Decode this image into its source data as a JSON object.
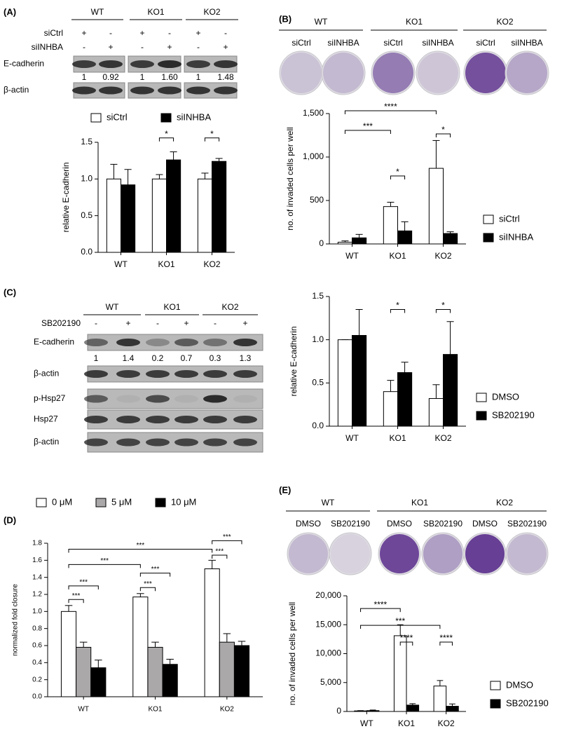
{
  "panels": [
    "(A)",
    "(B)",
    "(C)",
    "(D)",
    "(E)"
  ],
  "blot_a": {
    "groups": [
      "WT",
      "KO1",
      "KO2"
    ],
    "conditions": [
      {
        "name": "siCtrl",
        "signs": [
          "+",
          "-",
          "+",
          "-",
          "+",
          "-"
        ]
      },
      {
        "name": "siINHBA",
        "signs": [
          "-",
          "+",
          "-",
          "+",
          "-",
          "+"
        ]
      }
    ],
    "rows": [
      "E-cadherin",
      "β-actin"
    ],
    "ratios": [
      "1",
      "0.92",
      "1",
      "1.60",
      "1",
      "1.48"
    ]
  },
  "wells_b": {
    "groups": [
      "WT",
      "KO1",
      "KO2"
    ],
    "conditions": [
      "siCtrl",
      "siINHBA",
      "siCtrl",
      "siINHBA",
      "siCtrl",
      "siINHBA"
    ]
  },
  "blot_c": {
    "groups": [
      "WT",
      "KO1",
      "KO2"
    ],
    "conditions": [
      {
        "name": "SB202190",
        "signs": [
          "-",
          "+",
          "-",
          "+",
          "-",
          "+"
        ]
      }
    ],
    "rows": [
      "E-cadherin",
      "β-actin",
      "p-Hsp27",
      "Hsp27",
      "β-actin"
    ],
    "ratios": [
      "1",
      "1.4",
      "0.2",
      "0.7",
      "0.3",
      "1.3"
    ]
  },
  "wells_e": {
    "groups": [
      "WT",
      "KO1",
      "KO2"
    ],
    "conditions": [
      "DMSO",
      "SB202190",
      "DMSO",
      "SB202190",
      "DMSO",
      "SB202190"
    ]
  },
  "chart_data": [
    {
      "type": "bar",
      "ylabel": "relative E-cadherin",
      "categories": [
        "WT",
        "KO1",
        "KO2"
      ],
      "series": [
        {
          "name": "siCtrl",
          "color": "#ffffff",
          "values": [
            1.0,
            1.0,
            1.0
          ],
          "errors": [
            0.2,
            0.06,
            0.08
          ]
        },
        {
          "name": "siINHBA",
          "color": "#000000",
          "values": [
            0.92,
            1.26,
            1.24
          ],
          "errors": [
            0.21,
            0.11,
            0.04
          ]
        }
      ],
      "ylim": [
        0,
        1.5
      ],
      "yticks": [
        {
          "value": 0,
          "label": "0.0"
        },
        0.5,
        {
          "value": 1,
          "label": "1.0"
        },
        1.5
      ],
      "legend": "top",
      "brackets": [
        {
          "label": "*",
          "from": [
            0,
            1
          ],
          "to": [
            1,
            1
          ],
          "y": 1.56
        },
        {
          "label": "*",
          "from": [
            0,
            2
          ],
          "to": [
            1,
            2
          ],
          "y": 1.56
        }
      ]
    },
    {
      "type": "bar",
      "ylabel": "no. of invaded cells per well",
      "categories": [
        "WT",
        "KO1",
        "KO2"
      ],
      "series": [
        {
          "name": "siCtrl",
          "color": "#ffffff",
          "values": [
            20,
            430,
            870
          ],
          "errors": [
            15,
            50,
            320
          ]
        },
        {
          "name": "siINHBA",
          "color": "#000000",
          "values": [
            70,
            150,
            120
          ],
          "errors": [
            40,
            105,
            20
          ]
        }
      ],
      "ylim": [
        0,
        1500
      ],
      "yticks": [
        0,
        500,
        {
          "value": 1000,
          "label": "1,000"
        },
        {
          "value": 1500,
          "label": "1,500"
        }
      ],
      "legend": "right",
      "brackets": [
        {
          "label": "****",
          "from": [
            0,
            0
          ],
          "to": [
            0,
            2
          ],
          "y": 1532
        },
        {
          "label": "***",
          "from": [
            0,
            0
          ],
          "to": [
            0,
            1
          ],
          "y": 1306
        },
        {
          "label": "*",
          "from": [
            0,
            1
          ],
          "to": [
            1,
            1
          ],
          "y": 782
        },
        {
          "label": "*",
          "from": [
            0,
            2
          ],
          "to": [
            1,
            2
          ],
          "y": 1266
        }
      ]
    },
    {
      "type": "bar",
      "ylabel": "relative E-cadherin",
      "categories": [
        "WT",
        "KO1",
        "KO2"
      ],
      "series": [
        {
          "name": "DMSO",
          "color": "#ffffff",
          "values": [
            1.0,
            0.4,
            0.32
          ],
          "errors": [
            0,
            0.13,
            0.16
          ]
        },
        {
          "name": "SB202190",
          "color": "#000000",
          "values": [
            1.05,
            0.62,
            0.83
          ],
          "errors": [
            0.3,
            0.12,
            0.38
          ]
        }
      ],
      "ylim": [
        0,
        1.5
      ],
      "yticks": [
        {
          "value": 0,
          "label": "0.0"
        },
        0.5,
        {
          "value": 1,
          "label": "1.0"
        },
        1.5
      ],
      "legend": "right",
      "brackets": [
        {
          "label": "*",
          "from": [
            0,
            1
          ],
          "to": [
            1,
            1
          ],
          "y": 1.35
        },
        {
          "label": "*",
          "from": [
            0,
            2
          ],
          "to": [
            1,
            2
          ],
          "y": 1.35
        }
      ]
    },
    {
      "type": "bar",
      "ylabel": "normalized fold closure",
      "categories": [
        "WT",
        "KO1",
        "KO2"
      ],
      "series": [
        {
          "name": "0 μM",
          "color": "#ffffff",
          "values": [
            1.0,
            1.17,
            1.5
          ],
          "errors": [
            0.07,
            0.04,
            0.1
          ]
        },
        {
          "name": "5 μM",
          "color": "#aaa8a8",
          "values": [
            0.58,
            0.58,
            0.64
          ],
          "errors": [
            0.06,
            0.06,
            0.1
          ]
        },
        {
          "name": "10 μM",
          "color": "#000000",
          "values": [
            0.34,
            0.38,
            0.6
          ],
          "errors": [
            0.09,
            0.06,
            0.05
          ]
        }
      ],
      "ylim": [
        0,
        1.8
      ],
      "yticks": [
        {
          "value": 0,
          "label": "0.0"
        },
        0.2,
        0.4,
        0.6,
        0.8,
        {
          "value": 1,
          "label": "1.0"
        },
        1.2,
        1.4,
        1.6,
        1.8
      ],
      "legend": "top",
      "brackets": [
        {
          "label": "***",
          "from": [
            0,
            0
          ],
          "to": [
            1,
            0
          ],
          "y": 1.14
        },
        {
          "label": "***",
          "from": [
            0,
            0
          ],
          "to": [
            2,
            0
          ],
          "y": 1.3
        },
        {
          "label": "***",
          "from": [
            0,
            0
          ],
          "to": [
            0,
            1
          ],
          "y": 1.55
        },
        {
          "label": "***",
          "from": [
            0,
            0
          ],
          "to": [
            0,
            2
          ],
          "y": 1.73
        },
        {
          "label": "***",
          "from": [
            0,
            1
          ],
          "to": [
            1,
            1
          ],
          "y": 1.28
        },
        {
          "label": "***",
          "from": [
            0,
            1
          ],
          "to": [
            2,
            1
          ],
          "y": 1.45
        },
        {
          "label": "***",
          "from": [
            0,
            2
          ],
          "to": [
            1,
            2
          ],
          "y": 1.66
        },
        {
          "label": "***",
          "from": [
            0,
            2
          ],
          "to": [
            2,
            2
          ],
          "y": 1.83
        }
      ]
    },
    {
      "type": "bar",
      "ylabel": "no. of invaded cells per well",
      "categories": [
        "WT",
        "KO1",
        "KO2"
      ],
      "series": [
        {
          "name": "DMSO",
          "color": "#ffffff",
          "values": [
            100,
            13100,
            4400
          ],
          "errors": [
            50,
            1900,
            950
          ]
        },
        {
          "name": "SB202190",
          "color": "#000000",
          "values": [
            150,
            1100,
            900
          ],
          "errors": [
            100,
            250,
            400
          ]
        }
      ],
      "ylim": [
        0,
        20000
      ],
      "yticks": [
        0,
        {
          "value": 5000,
          "label": "5,000"
        },
        {
          "value": 10000,
          "label": "10,000"
        },
        {
          "value": 15000,
          "label": "15,000"
        },
        {
          "value": 20000,
          "label": "20,000"
        }
      ],
      "legend": "right",
      "brackets": [
        {
          "label": "****",
          "from": [
            0,
            0
          ],
          "to": [
            0,
            1
          ],
          "y": 17800
        },
        {
          "label": "***",
          "from": [
            0,
            0
          ],
          "to": [
            0,
            2
          ],
          "y": 14900
        },
        {
          "label": "****",
          "from": [
            0,
            1
          ],
          "to": [
            1,
            1
          ],
          "y": 12000
        },
        {
          "label": "****",
          "from": [
            0,
            2
          ],
          "to": [
            1,
            2
          ],
          "y": 12000
        }
      ]
    }
  ]
}
